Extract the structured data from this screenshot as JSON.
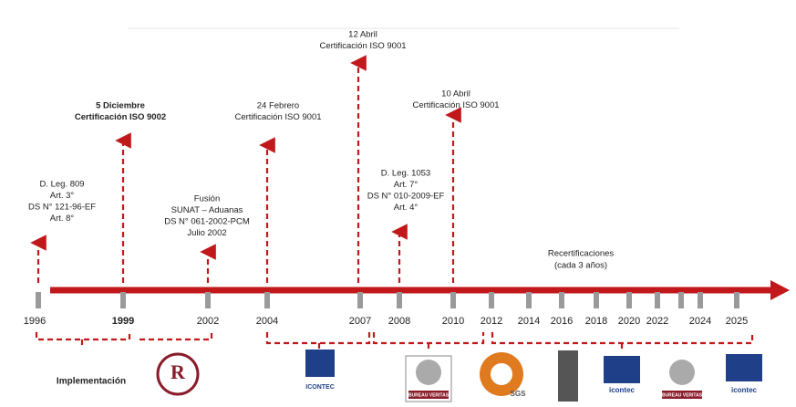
{
  "title_events": [
    {
      "lines": [
        "D. Leg. 809",
        "Art. 3°",
        "DS N° 121-96-EF",
        "Art. 8°"
      ]
    },
    {
      "lines": [
        "5 Diciembre",
        "Certificación ISO 9002"
      ]
    },
    {
      "lines": [
        "Fusión",
        "SUNAT – Aduanas",
        "DS N° 061-2002-PCM",
        "Julio 2002"
      ]
    },
    {
      "lines": [
        "24 Febrero",
        "Certificación ISO 9001"
      ]
    },
    {
      "lines": [
        "12 Abril",
        "Certificación ISO 9001"
      ]
    },
    {
      "lines": [
        "D. Leg. 1053",
        "Art. 7°",
        "DS N° 010-2009-EF",
        "Art. 4°"
      ]
    },
    {
      "lines": [
        "10 Abril",
        "Certificación ISO 9001"
      ]
    }
  ],
  "years": [
    "1996",
    "1999",
    "2002",
    "2004",
    "2007",
    "2008",
    "2010",
    "2012",
    "2014",
    "2016",
    "2018",
    "2020",
    "2022",
    "2024",
    "2025"
  ],
  "recertification": [
    "Recertificaciones",
    "(cada 3 años)"
  ],
  "implementation": "Implementación",
  "logos": [
    "ICONTEC",
    "SGS",
    "icontec",
    "BUREAU VERITAS"
  ]
}
